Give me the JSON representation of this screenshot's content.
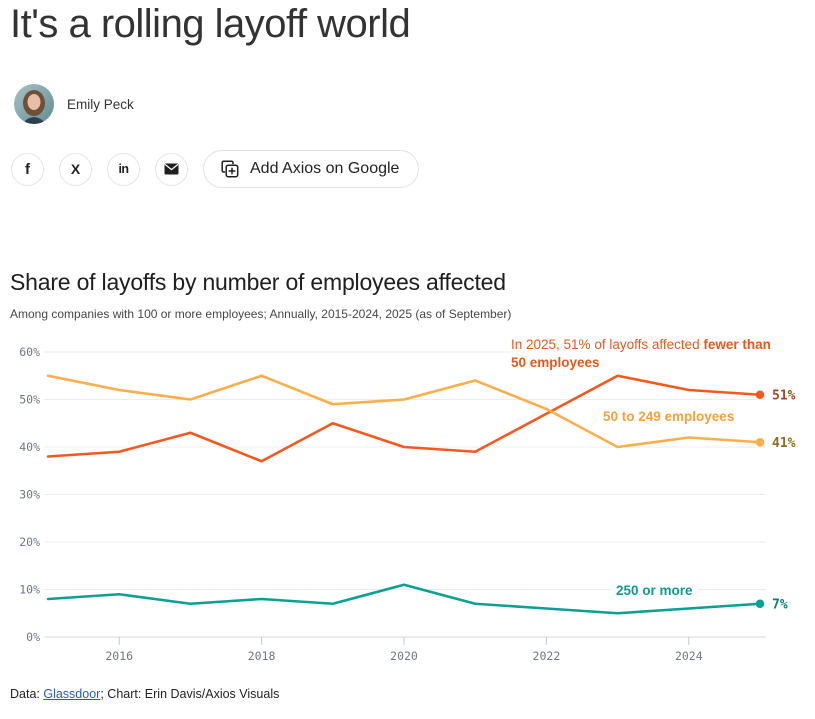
{
  "article": {
    "title": "It's a rolling layoff world",
    "author": "Emily Peck"
  },
  "share": {
    "icons": [
      {
        "name": "facebook-icon",
        "glyph": "f"
      },
      {
        "name": "x-icon",
        "glyph": "X"
      },
      {
        "name": "linkedin-icon",
        "glyph": "in"
      },
      {
        "name": "email-icon",
        "glyph": "envelope"
      }
    ],
    "google_button_label": "Add Axios on Google"
  },
  "chart": {
    "title": "Share of layoffs by number of employees affected",
    "subtitle": "Among companies with 100 or more employees; Annually, 2015-2024, 2025 (as of September)",
    "annotation": {
      "normal": "In 2025, 51% of layoffs affected ",
      "bold_line1": "fewer than",
      "bold_line2": "50 employees"
    },
    "series_label_mid": "50 to 249 employees",
    "series_label_bottom": "250 or more",
    "footer": {
      "prefix": "Data: ",
      "link": "Glassdoor",
      "suffix": "; Chart: Erin Davis/Axios Visuals"
    }
  },
  "chart_data": {
    "type": "line",
    "title": "Share of layoffs by number of employees affected",
    "subtitle": "Among companies with 100 or more employees; Annually, 2015-2024, 2025 (as of September)",
    "x": [
      2015,
      2016,
      2017,
      2018,
      2019,
      2020,
      2021,
      2022,
      2023,
      2024,
      2025
    ],
    "xticks": [
      2016,
      2018,
      2020,
      2022,
      2024
    ],
    "ylim": [
      0,
      60
    ],
    "yticks": [
      0,
      10,
      20,
      30,
      40,
      50,
      60
    ],
    "ytick_suffix": "%",
    "grid": "horizontal",
    "legend_position": "inline-labels",
    "series": [
      {
        "name": "Fewer than 50 employees",
        "values": [
          38,
          39,
          43,
          37,
          45,
          40,
          39,
          47,
          55,
          52,
          51
        ],
        "color": "#f2591e",
        "end_label": "51%",
        "end_label_color": "#9e4a1f"
      },
      {
        "name": "50 to 249 employees",
        "values": [
          55,
          52,
          50,
          55,
          49,
          50,
          54,
          48,
          40,
          42,
          41
        ],
        "color": "#fbae4b",
        "end_label": "41%",
        "end_label_color": "#8f6b1c"
      },
      {
        "name": "250 or more",
        "values": [
          8,
          9,
          7,
          8,
          7,
          11,
          7,
          6,
          5,
          6,
          7
        ],
        "color": "#0ba094",
        "end_label": "7%",
        "end_label_color": "#0a7f74"
      }
    ],
    "colors": {
      "grid": "#ececea",
      "axis": "#d8d8d6",
      "tick_text": "#6e7780",
      "annotation": "#e8581e"
    }
  }
}
